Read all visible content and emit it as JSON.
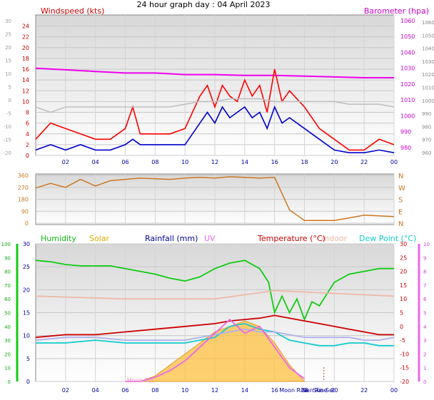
{
  "title": "24 hour graph day : 04 April 2023",
  "chart_data": [
    {
      "type": "line",
      "id": "wind",
      "left_label": "Windspeed (kts)",
      "right_label": "Barometer (hpa)",
      "left_ticks": [
        0,
        2,
        4,
        6,
        8,
        10,
        12,
        14,
        16,
        18,
        20,
        22,
        24
      ],
      "outer_ticks": [
        -20,
        -15,
        -10,
        -5,
        0,
        5,
        10,
        15,
        20,
        25,
        30
      ],
      "right_ticks": [
        980,
        990,
        1000,
        1010,
        1020,
        1030,
        1040,
        1050,
        1060
      ],
      "right_ticks_low": [
        960,
        970,
        980,
        990,
        1000,
        1010,
        1020,
        1030,
        1040,
        1050,
        1060
      ],
      "x_ticks": [
        "02",
        "04",
        "06",
        "08",
        "10",
        "12",
        "14",
        "16",
        "18",
        "20",
        "22",
        "00"
      ],
      "ylim": [
        0,
        25
      ],
      "series": [
        {
          "name": "Barometer (hpa)",
          "color": "#ee00ee",
          "x": [
            0,
            2,
            4,
            6,
            8,
            10,
            12,
            14,
            16,
            18,
            20,
            22,
            24
          ],
          "values": [
            1030,
            1029,
            1028,
            1027,
            1027,
            1026,
            1026,
            1025.5,
            1025.5,
            1025,
            1024.5,
            1024,
            1024
          ]
        },
        {
          "color": "#ff0000",
          "x": [
            0,
            1,
            2,
            3,
            4,
            5,
            6,
            6.5,
            7,
            8,
            9,
            10,
            11,
            11.5,
            12,
            12.5,
            13,
            13.5,
            14,
            14.5,
            15,
            15.5,
            16,
            16.5,
            17,
            18,
            19,
            20,
            21,
            22,
            23,
            24
          ],
          "values": [
            3,
            6,
            5,
            4,
            3,
            3,
            5,
            9,
            4,
            4,
            4,
            5,
            11,
            13,
            9,
            13,
            11,
            10,
            14,
            11,
            13,
            8,
            16,
            10,
            12,
            9,
            5,
            3,
            1,
            1,
            3,
            2
          ]
        },
        {
          "color": "#c0c0c0",
          "x": [
            0,
            1,
            2,
            3,
            4,
            5,
            6,
            7,
            8,
            9,
            10,
            11,
            12,
            13,
            14,
            15,
            16,
            17,
            18,
            19,
            20,
            21,
            22,
            23,
            24
          ],
          "values": [
            9,
            8,
            9,
            9,
            9,
            9,
            9,
            9,
            9,
            9,
            9.5,
            10,
            10,
            10.5,
            10.5,
            10.5,
            10,
            10,
            10,
            10,
            10,
            9.5,
            9.5,
            9.5,
            9
          ]
        },
        {
          "color": "#0000cc",
          "x": [
            0,
            1,
            2,
            3,
            4,
            5,
            6,
            6.5,
            7,
            8,
            9,
            10,
            11,
            11.5,
            12,
            12.5,
            13,
            13.5,
            14,
            14.5,
            15,
            15.5,
            16,
            16.5,
            17,
            18,
            19,
            20,
            21,
            22,
            23,
            24
          ],
          "values": [
            1,
            2,
            1,
            2,
            1,
            1,
            2,
            3,
            2,
            2,
            2,
            2,
            6,
            8,
            6,
            9,
            7,
            8,
            9,
            7,
            8,
            5,
            9,
            6,
            7,
            5,
            3,
            1,
            0.5,
            0.5,
            1,
            0.5
          ]
        }
      ]
    },
    {
      "type": "line",
      "id": "direction",
      "left_ticks": [
        0,
        90,
        180,
        270,
        360
      ],
      "right_ticks": [
        "N",
        "E",
        "S",
        "W",
        "N"
      ],
      "ylim": [
        0,
        360
      ],
      "series": [
        {
          "color": "#cc7722",
          "x": [
            0,
            1,
            2,
            3,
            4,
            5,
            6,
            7,
            8,
            9,
            10,
            11,
            12,
            13,
            14,
            15,
            16,
            17,
            18,
            19,
            20,
            21,
            22,
            23,
            24
          ],
          "values": [
            265,
            300,
            270,
            330,
            280,
            320,
            330,
            340,
            335,
            330,
            340,
            345,
            340,
            350,
            345,
            340,
            345,
            100,
            20,
            20,
            20,
            40,
            60,
            55,
            50
          ]
        }
      ]
    },
    {
      "type": "line",
      "id": "multi",
      "legend": [
        "Humidity",
        "Solar",
        "Rainfall (mm)",
        "UV",
        "Temperature (°C)",
        "Indoor",
        "Dew Point (°C)"
      ],
      "legend_colors": [
        "#11bb11",
        "#ddaa00",
        "#000099",
        "#ee66ee",
        "#cc0000",
        "#f0b8a8",
        "#11cccc"
      ],
      "left_ticks": [
        0,
        5,
        10,
        15,
        20,
        25,
        30
      ],
      "outer_ticks": [
        0,
        10,
        20,
        30,
        40,
        50,
        60,
        70,
        80,
        90,
        100
      ],
      "right_ticks_temp": [
        -20,
        -15,
        -10,
        -5,
        0,
        5,
        10,
        15,
        20,
        25,
        30
      ],
      "right_ticks_uv": [
        0,
        1,
        2,
        3,
        4,
        5,
        6,
        7,
        8,
        9,
        10
      ],
      "x_ticks": [
        "02",
        "04",
        "06",
        "08",
        "10",
        "12",
        "14",
        "16",
        "18",
        "20",
        "22",
        "00"
      ],
      "x_tick_hours": [
        2,
        4,
        6,
        8,
        10,
        12,
        14,
        16,
        18,
        20,
        22,
        24
      ],
      "annotations": [
        "Moon Rise",
        "Sun Set",
        "Moon Set",
        "Sun Rise"
      ],
      "annotation_hours": [
        17.3,
        19.3,
        7.0,
        18.7
      ],
      "ylim": [
        -20,
        30
      ],
      "series": [
        {
          "name": "Humidity",
          "color": "#11cc11",
          "x": [
            0,
            1,
            2,
            3,
            4,
            5,
            6,
            7,
            8,
            9,
            10,
            11,
            12,
            13,
            14,
            15,
            15.6,
            16,
            16.5,
            17,
            17.5,
            18,
            18.5,
            19,
            20,
            21,
            22,
            23,
            24
          ],
          "values": [
            88,
            87,
            85,
            84,
            84,
            84,
            82,
            80,
            78,
            75,
            73,
            76,
            82,
            86,
            88,
            82,
            72,
            50,
            62,
            50,
            60,
            45,
            58,
            55,
            72,
            78,
            80,
            82,
            82
          ]
        },
        {
          "name": "Indoor",
          "color": "#f0b8a8",
          "x": [
            0,
            6,
            12,
            16,
            20,
            24
          ],
          "values": [
            11,
            10,
            10,
            13,
            12,
            11
          ]
        },
        {
          "name": "Temperature (°C)",
          "color": "#cc0000",
          "x": [
            0,
            2,
            4,
            6,
            8,
            10,
            12,
            13,
            14,
            15,
            16,
            17,
            18,
            19,
            20,
            21,
            22,
            23,
            24
          ],
          "values": [
            -4,
            -3,
            -3,
            -2,
            -1,
            0,
            1,
            2,
            2.5,
            3,
            4,
            3,
            2,
            1,
            0,
            -1,
            -2,
            -3,
            -3
          ]
        },
        {
          "name": "Dew Point (°C)",
          "color": "#11cccc",
          "x": [
            0,
            2,
            4,
            6,
            8,
            10,
            12,
            13,
            14,
            15,
            16,
            17,
            18,
            19,
            20,
            21,
            22,
            23,
            24
          ],
          "values": [
            -6,
            -6,
            -5,
            -6,
            -6,
            -6,
            -4,
            0,
            1,
            -1,
            -2,
            -5,
            -6,
            -7,
            -7,
            -6,
            -6,
            -7,
            -7
          ]
        },
        {
          "color": "#b0b0ee",
          "x": [
            0,
            2,
            4,
            6,
            8,
            10,
            12,
            13,
            14,
            15,
            16,
            17,
            18,
            19,
            20,
            21,
            22,
            23,
            24
          ],
          "values": [
            -5,
            -4,
            -4,
            -5,
            -5,
            -5,
            -3,
            -2,
            -1,
            -2,
            -2,
            -3,
            -4,
            -4,
            -4,
            -4,
            -5,
            -5,
            -4
          ]
        },
        {
          "name": "UV",
          "color": "#ee66ee",
          "x": [
            6,
            7,
            8,
            9,
            10,
            11,
            12,
            13,
            14,
            15,
            16,
            17,
            18
          ],
          "values": [
            0,
            0,
            0.3,
            0.8,
            1.5,
            2.5,
            3.5,
            4.5,
            3.5,
            4,
            2.5,
            1,
            0.2
          ]
        },
        {
          "name": "Solar",
          "color": "#ffc040",
          "x": [
            6,
            7,
            8,
            9,
            10,
            11,
            12,
            13,
            14,
            15,
            16,
            17,
            18
          ],
          "values": [
            -20,
            -20,
            -18,
            -14,
            -10,
            -6,
            -2,
            0,
            2,
            0,
            -6,
            -14,
            -20
          ]
        }
      ]
    }
  ]
}
